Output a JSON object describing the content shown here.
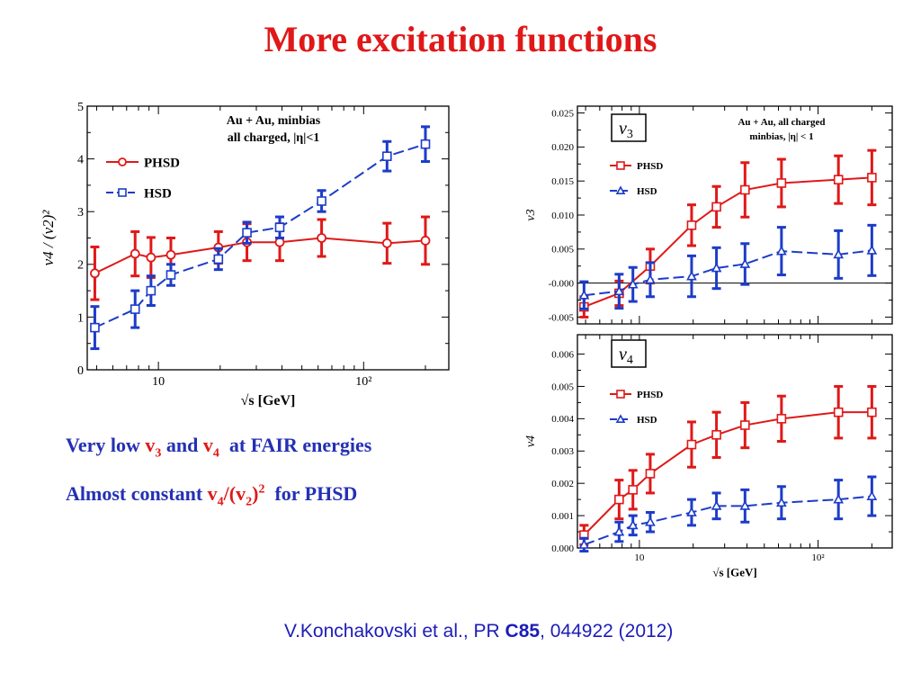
{
  "title": "More excitation functions",
  "notes": {
    "line1": {
      "prefix": "Very low ",
      "v3_v": "v",
      "v3_sub": "3",
      "mid": " and ",
      "v4_v": "v",
      "v4_sub": "4",
      "suffix": "  at FAIR energies"
    },
    "line2": {
      "prefix": "Almost constant ",
      "v4_v": "v",
      "v4_sub": "4",
      "slash": "/(v",
      "v2_sub": "2",
      "close": ")",
      "sup": "2",
      "suffix": "  for PHSD"
    }
  },
  "citation": {
    "prefix": "V.Konchakovski et al., PR ",
    "bold": "C85",
    "suffix": ", 044922 (2012)"
  },
  "colors": {
    "phsd": "#e01818",
    "hsd": "#1c3cc8",
    "title": "#e01818",
    "note": "#2430b4",
    "citation": "#1c1cb8"
  },
  "chart_data": [
    {
      "id": "v4-over-v2sq",
      "type": "line",
      "x_scale": "log",
      "xlim": [
        4.5,
        260
      ],
      "ylim": [
        0,
        5
      ],
      "xlabel": "√s  [GeV]",
      "ylabel": "v4 / (v2)²",
      "xticks": [
        "10",
        "10²"
      ],
      "yticks": [
        "0",
        "1",
        "2",
        "3",
        "4",
        "5"
      ],
      "annotation": [
        "Au + Au, minbias",
        "all charged, |η|<1"
      ],
      "legend": [
        "PHSD",
        "HSD"
      ],
      "series": [
        {
          "name": "PHSD",
          "marker": "circle",
          "color": "#e01818",
          "x": [
            4.9,
            7.7,
            9.2,
            11.5,
            19.6,
            27,
            39,
            62.4,
            130,
            200
          ],
          "y": [
            1.83,
            2.2,
            2.13,
            2.18,
            2.32,
            2.42,
            2.42,
            2.5,
            2.4,
            2.45
          ],
          "err": [
            0.5,
            0.42,
            0.38,
            0.32,
            0.3,
            0.35,
            0.35,
            0.35,
            0.38,
            0.45
          ]
        },
        {
          "name": "HSD",
          "marker": "square",
          "color": "#1c3cc8",
          "x": [
            4.9,
            7.7,
            9.2,
            11.5,
            19.6,
            27,
            39,
            62.4,
            130,
            200
          ],
          "y": [
            0.8,
            1.15,
            1.5,
            1.8,
            2.1,
            2.6,
            2.7,
            3.2,
            4.05,
            4.28
          ],
          "err": [
            0.4,
            0.35,
            0.28,
            0.2,
            0.2,
            0.2,
            0.2,
            0.2,
            0.28,
            0.33
          ]
        }
      ]
    },
    {
      "id": "v3",
      "type": "line",
      "x_scale": "log",
      "xlim": [
        4.5,
        260
      ],
      "ylim": [
        -0.006,
        0.026
      ],
      "xlabel": "",
      "ylabel": "v3",
      "label_box": "v3",
      "yticks": [
        "-0.005",
        "-0.000",
        "0.005",
        "0.010",
        "0.015",
        "0.020",
        "0.025"
      ],
      "annotation": [
        "Au + Au, all charged",
        "minbias, |η| < 1"
      ],
      "legend": [
        "PHSD",
        "HSD"
      ],
      "series": [
        {
          "name": "PHSD",
          "marker": "square",
          "color": "#e01818",
          "x": [
            4.9,
            7.7,
            11.5,
            19.6,
            27,
            39,
            62.4,
            130,
            200
          ],
          "y": [
            -0.0035,
            -0.0015,
            0.0025,
            0.0085,
            0.0112,
            0.0137,
            0.0147,
            0.0152,
            0.0155
          ],
          "err": [
            0.0015,
            0.0018,
            0.0025,
            0.003,
            0.003,
            0.004,
            0.0035,
            0.0035,
            0.004
          ]
        },
        {
          "name": "HSD",
          "marker": "triangle",
          "color": "#1c3cc8",
          "x": [
            4.9,
            7.7,
            9.2,
            11.5,
            19.6,
            27,
            39,
            62.4,
            130,
            200
          ],
          "y": [
            -0.0018,
            -0.0012,
            -0.0002,
            0.0005,
            0.001,
            0.0022,
            0.0028,
            0.0047,
            0.0042,
            0.0048
          ],
          "err": [
            0.002,
            0.0025,
            0.0025,
            0.0025,
            0.003,
            0.003,
            0.003,
            0.0035,
            0.0035,
            0.0037
          ]
        }
      ]
    },
    {
      "id": "v4",
      "type": "line",
      "x_scale": "log",
      "xlim": [
        4.5,
        260
      ],
      "ylim": [
        0,
        0.0066
      ],
      "xlabel": "√s  [GeV]",
      "ylabel": "v4",
      "label_box": "v4",
      "xticks": [
        "10",
        "10²"
      ],
      "yticks": [
        "0.000",
        "0.001",
        "0.002",
        "0.003",
        "0.004",
        "0.005",
        "0.006"
      ],
      "legend": [
        "PHSD",
        "HSD"
      ],
      "series": [
        {
          "name": "PHSD",
          "marker": "square",
          "color": "#e01818",
          "x": [
            4.9,
            7.7,
            9.2,
            11.5,
            19.6,
            27,
            39,
            62.4,
            130,
            200
          ],
          "y": [
            0.0004,
            0.0015,
            0.0018,
            0.0023,
            0.0032,
            0.0035,
            0.0038,
            0.004,
            0.0042,
            0.0042
          ],
          "err": [
            0.0003,
            0.0006,
            0.0006,
            0.0006,
            0.0007,
            0.0007,
            0.0007,
            0.0007,
            0.0008,
            0.0008
          ]
        },
        {
          "name": "HSD",
          "marker": "triangle",
          "color": "#1c3cc8",
          "x": [
            4.9,
            7.7,
            9.2,
            11.5,
            19.6,
            27,
            39,
            62.4,
            130,
            200
          ],
          "y": [
            0.0001,
            0.0005,
            0.0007,
            0.0008,
            0.0011,
            0.0013,
            0.0013,
            0.0014,
            0.0015,
            0.0016
          ],
          "err": [
            0.0002,
            0.0003,
            0.0003,
            0.0003,
            0.0004,
            0.0004,
            0.0005,
            0.0005,
            0.0006,
            0.0006
          ]
        }
      ]
    }
  ]
}
